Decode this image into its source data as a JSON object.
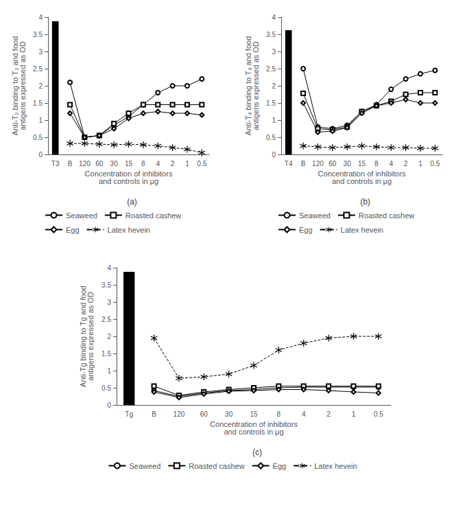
{
  "chart_data": [
    {
      "type": "line",
      "xlabel": "Concentration of inhibitors\nand controls in μg",
      "ylabel": "Anti-T₃ binding to T₃ and food\nantigens expressed as OD",
      "annotations": [
        "(a)"
      ],
      "categories": [
        "T3",
        "B",
        "120",
        "60",
        "30",
        "15",
        "8",
        "4",
        "2",
        "1",
        "0.5"
      ],
      "series": [
        {
          "type": "bar",
          "color": "#000000",
          "values": [
            3.88,
            null,
            null,
            null,
            null,
            null,
            null,
            null,
            null,
            null,
            null
          ]
        },
        {
          "type": "line",
          "name": "Seaweed",
          "color": "#000000",
          "marker": "circle",
          "line_style": "solid",
          "values": [
            null,
            2.1,
            0.5,
            0.55,
            0.85,
            1.1,
            1.45,
            1.8,
            2.0,
            2.0,
            2.2
          ]
        },
        {
          "type": "line",
          "name": "Roasted cashew",
          "color": "#000000",
          "marker": "square",
          "line_style": "solid",
          "values": [
            null,
            1.45,
            0.5,
            0.55,
            0.9,
            1.2,
            1.45,
            1.45,
            1.45,
            1.45,
            1.45
          ]
        },
        {
          "type": "line",
          "name": "Egg",
          "color": "#000000",
          "marker": "diamond",
          "line_style": "solid",
          "values": [
            null,
            1.2,
            0.5,
            0.55,
            0.75,
            1.05,
            1.2,
            1.25,
            1.2,
            1.2,
            1.15
          ]
        },
        {
          "type": "line",
          "name": "Latex hevein",
          "color": "#000000",
          "marker": "asterisk",
          "line_style": "dashed",
          "values": [
            null,
            0.32,
            0.32,
            0.3,
            0.28,
            0.3,
            0.28,
            0.25,
            0.2,
            0.15,
            0.05
          ]
        }
      ],
      "ylim": [
        0,
        4
      ],
      "yticks": [
        0,
        0.5,
        1,
        1.5,
        2,
        2.5,
        3,
        3.5,
        4
      ],
      "grid": false,
      "legend": "bottom"
    },
    {
      "type": "line",
      "xlabel": "Concentration of inhibitors\nand controls in μg",
      "ylabel": "Anti-T₄ binding to T₄ and food\nantigens expressed as OD",
      "annotations": [
        "(b)"
      ],
      "categories": [
        "T4",
        "B",
        "120",
        "60",
        "30",
        "15",
        "8",
        "4",
        "2",
        "1",
        "0.5"
      ],
      "series": [
        {
          "type": "bar",
          "color": "#000000",
          "values": [
            3.62,
            null,
            null,
            null,
            null,
            null,
            null,
            null,
            null,
            null,
            null
          ]
        },
        {
          "type": "line",
          "name": "Seaweed",
          "color": "#000000",
          "marker": "circle",
          "line_style": "solid",
          "values": [
            null,
            2.5,
            0.8,
            0.75,
            0.85,
            1.25,
            1.45,
            1.9,
            2.2,
            2.35,
            2.45
          ]
        },
        {
          "type": "line",
          "name": "Roasted cashew",
          "color": "#000000",
          "marker": "square",
          "line_style": "solid",
          "values": [
            null,
            1.78,
            0.75,
            0.72,
            0.8,
            1.25,
            1.42,
            1.55,
            1.75,
            1.8,
            1.8
          ]
        },
        {
          "type": "line",
          "name": "Egg",
          "color": "#000000",
          "marker": "diamond",
          "line_style": "solid",
          "values": [
            null,
            1.5,
            0.65,
            0.68,
            0.78,
            1.2,
            1.42,
            1.5,
            1.6,
            1.5,
            1.5
          ]
        },
        {
          "type": "line",
          "name": "Latex hevein",
          "color": "#000000",
          "marker": "asterisk",
          "line_style": "dashed",
          "values": [
            null,
            0.25,
            0.22,
            0.2,
            0.22,
            0.25,
            0.22,
            0.2,
            0.2,
            0.18,
            0.18
          ]
        }
      ],
      "ylim": [
        0,
        4
      ],
      "yticks": [
        0,
        0.5,
        1,
        1.5,
        2,
        2.5,
        3,
        3.5,
        4
      ],
      "grid": false,
      "legend": "bottom"
    },
    {
      "type": "line",
      "xlabel": "Concentration of inhibitors\nand controls in μg",
      "ylabel": "Anti-Tg binding to Tg and food\nantigens expressed as OD",
      "annotations": [
        "(c)"
      ],
      "categories": [
        "Tg",
        "B",
        "120",
        "60",
        "30",
        "15",
        "8",
        "4",
        "2",
        "1",
        "0.5"
      ],
      "series": [
        {
          "type": "bar",
          "color": "#000000",
          "values": [
            3.88,
            null,
            null,
            null,
            null,
            null,
            null,
            null,
            null,
            null,
            null
          ]
        },
        {
          "type": "line",
          "name": "Seaweed",
          "color": "#000000",
          "marker": "circle",
          "line_style": "solid",
          "values": [
            null,
            0.42,
            0.25,
            0.35,
            0.42,
            0.45,
            0.5,
            0.52,
            0.52,
            0.52,
            0.52
          ]
        },
        {
          "type": "line",
          "name": "Roasted cashew",
          "color": "#000000",
          "marker": "square",
          "line_style": "solid",
          "values": [
            null,
            0.55,
            0.28,
            0.38,
            0.45,
            0.5,
            0.55,
            0.55,
            0.55,
            0.55,
            0.55
          ]
        },
        {
          "type": "line",
          "name": "Egg",
          "color": "#000000",
          "marker": "diamond",
          "line_style": "solid",
          "values": [
            null,
            0.38,
            0.22,
            0.32,
            0.4,
            0.42,
            0.45,
            0.45,
            0.42,
            0.38,
            0.35
          ]
        },
        {
          "type": "line",
          "name": "Latex hevein",
          "color": "#000000",
          "marker": "asterisk",
          "line_style": "dashed",
          "values": [
            null,
            1.95,
            0.78,
            0.82,
            0.9,
            1.15,
            1.6,
            1.8,
            1.95,
            2.0,
            2.0
          ]
        }
      ],
      "ylim": [
        0,
        4
      ],
      "yticks": [
        0,
        0.5,
        1,
        1.5,
        2,
        2.5,
        3,
        3.5,
        4
      ],
      "grid": false,
      "legend": "bottom"
    }
  ]
}
